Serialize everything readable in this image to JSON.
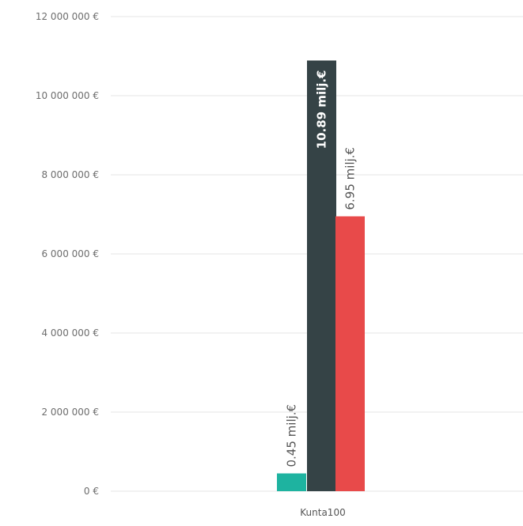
{
  "chart_data": {
    "type": "bar",
    "categories": [
      "Kunta100"
    ],
    "series": [
      {
        "values": [
          450000
        ],
        "label": "0.45 milj.€",
        "color": "#1eb3a0",
        "label_color": "#555555"
      },
      {
        "values": [
          10890000
        ],
        "label": "10.89 milj.€",
        "color": "#354346",
        "label_color": "#ffffff"
      },
      {
        "values": [
          6950000
        ],
        "label": "6.95 milj.€",
        "color": "#e84a4a",
        "label_color": "#555555"
      }
    ],
    "ylim": [
      0,
      12000000
    ],
    "yticks": [
      0,
      2000000,
      4000000,
      6000000,
      8000000,
      10000000,
      12000000
    ],
    "ytick_labels": [
      "0 €",
      "2 000 000 €",
      "4 000 000 €",
      "6 000 000 €",
      "8 000 000 €",
      "10 000 000 €",
      "12 000 000 €"
    ],
    "grid": true,
    "title": "",
    "xlabel": "",
    "ylabel": ""
  }
}
